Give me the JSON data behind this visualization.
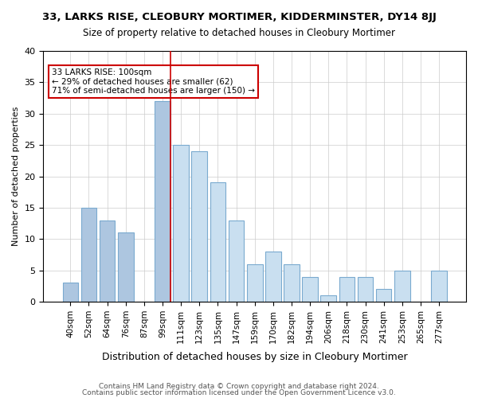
{
  "title1": "33, LARKS RISE, CLEOBURY MORTIMER, KIDDERMINSTER, DY14 8JJ",
  "title2": "Size of property relative to detached houses in Cleobury Mortimer",
  "xlabel": "Distribution of detached houses by size in Cleobury Mortimer",
  "ylabel": "Number of detached properties",
  "categories": [
    "40sqm",
    "52sqm",
    "64sqm",
    "76sqm",
    "87sqm",
    "99sqm",
    "111sqm",
    "123sqm",
    "135sqm",
    "147sqm",
    "159sqm",
    "170sqm",
    "182sqm",
    "194sqm",
    "206sqm",
    "218sqm",
    "230sqm",
    "241sqm",
    "253sqm",
    "265sqm",
    "277sqm"
  ],
  "values": [
    3,
    15,
    13,
    11,
    0,
    32,
    25,
    24,
    19,
    13,
    6,
    8,
    6,
    4,
    1,
    4,
    4,
    2,
    5,
    0,
    5
  ],
  "bar_color_smaller": "#adc6e0",
  "bar_color_larger": "#c9dff0",
  "property_line_x": 5,
  "annotation_text": "33 LARKS RISE: 100sqm\n← 29% of detached houses are smaller (62)\n71% of semi-detached houses are larger (150) →",
  "annotation_box_color": "#cc0000",
  "footer1": "Contains HM Land Registry data © Crown copyright and database right 2024.",
  "footer2": "Contains public sector information licensed under the Open Government Licence v3.0.",
  "ylim": [
    0,
    40
  ],
  "yticks": [
    0,
    5,
    10,
    15,
    20,
    25,
    30,
    35,
    40
  ]
}
